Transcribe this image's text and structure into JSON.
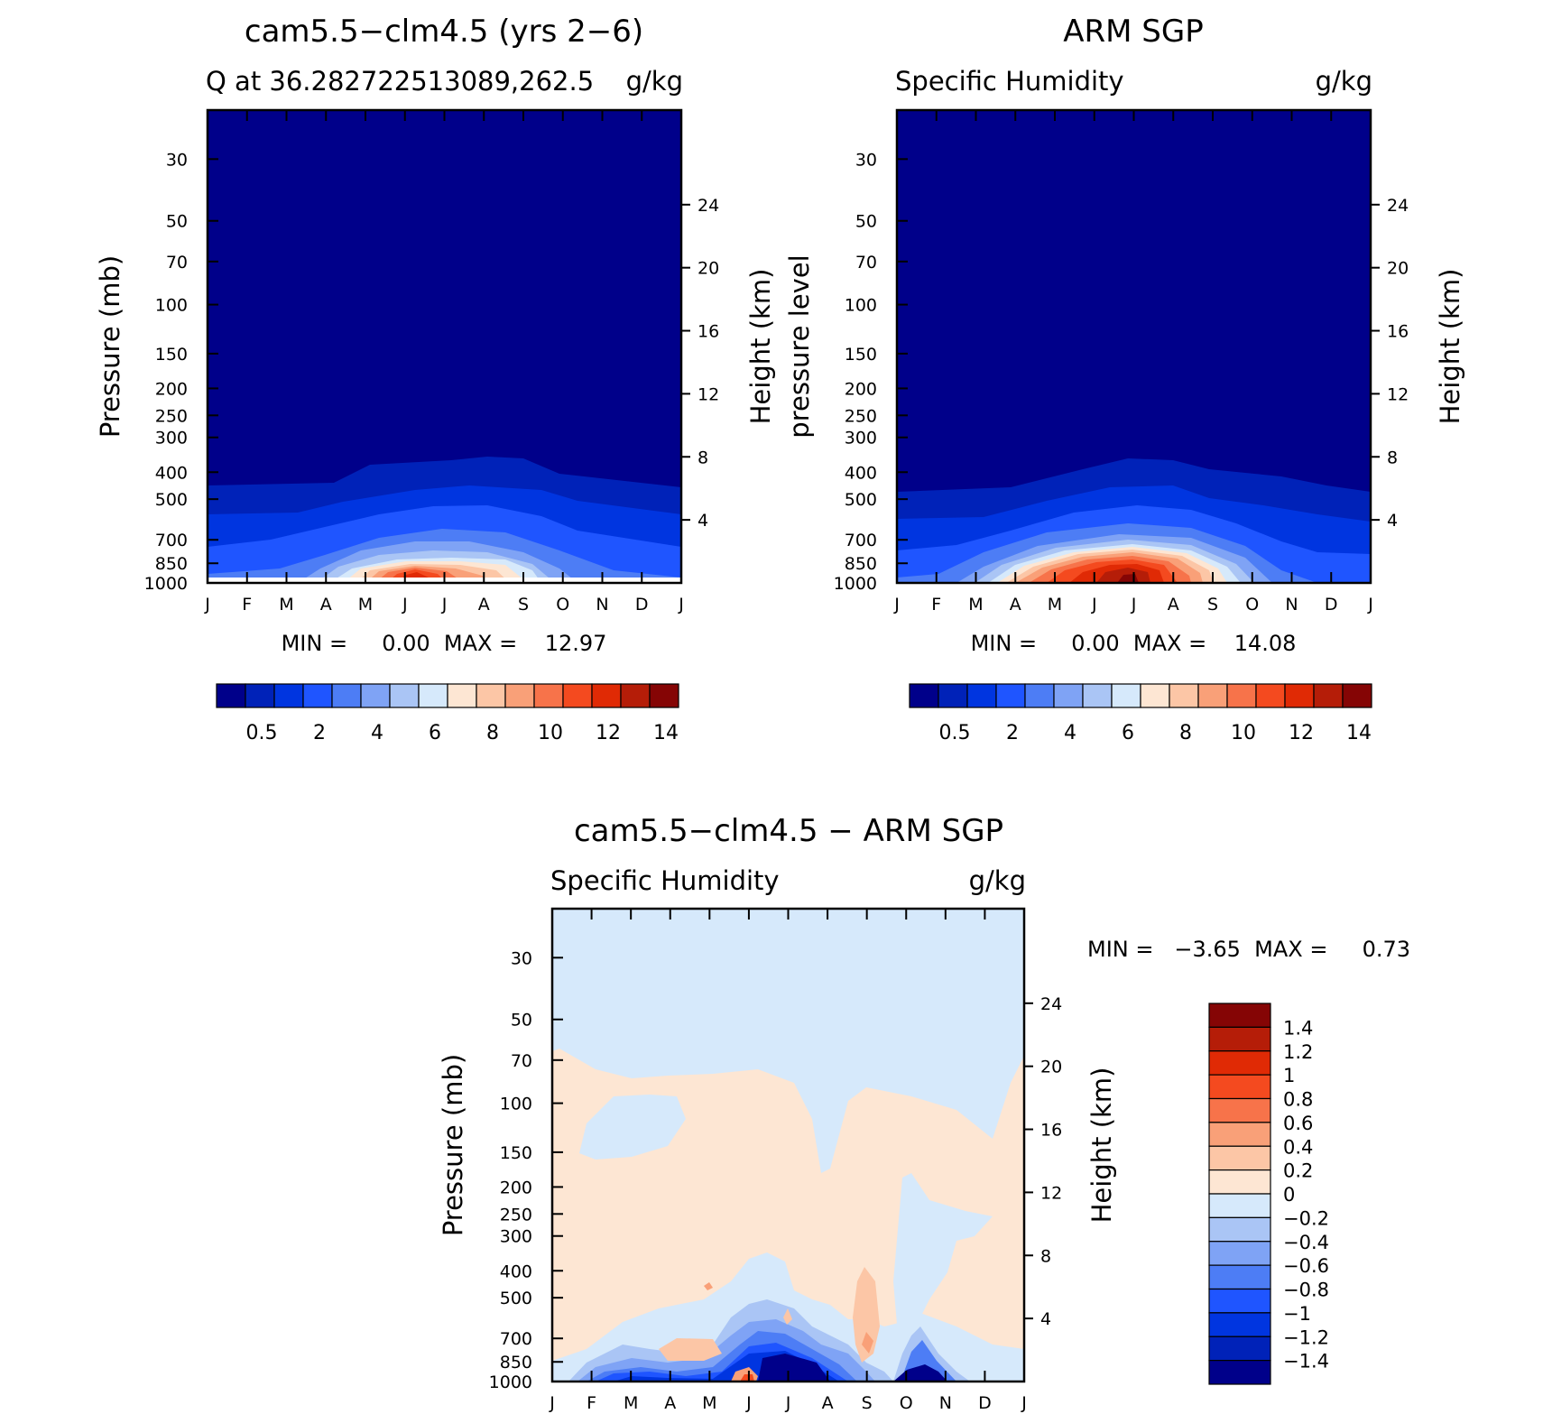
{
  "months": [
    "J",
    "F",
    "M",
    "A",
    "M",
    "J",
    "J",
    "A",
    "S",
    "O",
    "N",
    "D",
    "J"
  ],
  "pressure_ticks": [
    30,
    50,
    70,
    100,
    150,
    200,
    250,
    300,
    400,
    500,
    700,
    850,
    1000
  ],
  "height_ticks": [
    4,
    8,
    12,
    16,
    20,
    24
  ],
  "panels": [
    {
      "id": "model",
      "title": "cam5.5−clm4.5 (yrs 2−6)",
      "left_label": "Q at 36.282722513089,262.5",
      "right_label": "g/kg",
      "ylabel": "Pressure (mb)",
      "y2label": "Height (km)",
      "stats": "MIN =     0.00  MAX =    12.97"
    },
    {
      "id": "obs",
      "title": "ARM SGP",
      "left_label": "Specific Humidity",
      "right_label": "g/kg",
      "ylabel": "pressure level",
      "y2label": "Height (km)",
      "stats": "MIN =     0.00  MAX =    14.08"
    },
    {
      "id": "diff",
      "title": "cam5.5−clm4.5 − ARM SGP",
      "left_label": "Specific Humidity",
      "right_label": "g/kg",
      "ylabel": "Pressure (mb)",
      "y2label": "Height (km)",
      "stats": "MIN =   −3.65  MAX =     0.73"
    }
  ],
  "colorbar_q": {
    "labels": [
      "0.5",
      "2",
      "4",
      "6",
      "8",
      "10",
      "12",
      "14"
    ],
    "colors": [
      "#00008a",
      "#0022b8",
      "#0035e0",
      "#1f55ff",
      "#4d7df5",
      "#7fa3f5",
      "#aac5f5",
      "#d6e9fb",
      "#fde6d3",
      "#fcc6a6",
      "#f9a078",
      "#f7734a",
      "#f44a1f",
      "#e02a05",
      "#b51d08",
      "#850505"
    ]
  },
  "colorbar_diff": {
    "labels": [
      "1.4",
      "1.2",
      "1",
      "0.8",
      "0.6",
      "0.4",
      "0.2",
      "0",
      "−0.2",
      "−0.4",
      "−0.6",
      "−0.8",
      "−1",
      "−1.2",
      "−1.4"
    ],
    "colors_top_to_bottom": [
      "#850505",
      "#b51d08",
      "#e02a05",
      "#f44a1f",
      "#f7734a",
      "#f9a078",
      "#fcc6a6",
      "#fde6d3",
      "#d6e9fb",
      "#aac5f5",
      "#7fa3f5",
      "#4d7df5",
      "#1f55ff",
      "#0035e0",
      "#0022b8",
      "#00008a"
    ]
  },
  "chart_data": [
    {
      "type": "heatmap",
      "title": "cam5.5−clm4.5 (yrs 2−6)",
      "subtitle": "Q at 36.282722513089,262.5",
      "units": "g/kg",
      "x": [
        "J",
        "F",
        "M",
        "A",
        "M",
        "J",
        "J",
        "A",
        "S",
        "O",
        "N",
        "D",
        "J"
      ],
      "ylabel": "Pressure (mb)",
      "y2label": "Height (km)",
      "ylim": [
        1000,
        20
      ],
      "yscale": "log",
      "min": 0.0,
      "max": 12.97,
      "contour_levels": [
        0.5,
        1,
        2,
        3,
        4,
        5,
        6,
        7,
        8,
        9,
        10,
        11,
        12,
        13,
        14
      ],
      "surface_max_by_month": [
        2.5,
        2.8,
        3.6,
        5.0,
        9.5,
        12.97,
        11.5,
        10.0,
        7.5,
        4.5,
        3.2,
        2.6,
        2.5
      ]
    },
    {
      "type": "heatmap",
      "title": "ARM SGP",
      "subtitle": "Specific Humidity",
      "units": "g/kg",
      "x": [
        "J",
        "F",
        "M",
        "A",
        "M",
        "J",
        "J",
        "A",
        "S",
        "O",
        "N",
        "D",
        "J"
      ],
      "ylabel": "pressure level",
      "y2label": "Height (km)",
      "ylim": [
        1000,
        20
      ],
      "yscale": "log",
      "min": 0.0,
      "max": 14.08,
      "contour_levels": [
        0.5,
        1,
        2,
        3,
        4,
        5,
        6,
        7,
        8,
        9,
        10,
        11,
        12,
        13,
        14
      ],
      "surface_max_by_month": [
        2.6,
        3.0,
        4.0,
        6.0,
        9.0,
        12.0,
        14.08,
        13.0,
        10.5,
        7.0,
        4.5,
        3.0,
        2.6
      ]
    },
    {
      "type": "heatmap",
      "title": "cam5.5−clm4.5 − ARM SGP",
      "subtitle": "Specific Humidity",
      "units": "g/kg",
      "x": [
        "J",
        "F",
        "M",
        "A",
        "M",
        "J",
        "J",
        "A",
        "S",
        "O",
        "N",
        "D",
        "J"
      ],
      "ylabel": "Pressure (mb)",
      "y2label": "Height (km)",
      "ylim": [
        1000,
        20
      ],
      "yscale": "log",
      "min": -3.65,
      "max": 0.73,
      "contour_levels": [
        -1.4,
        -1.2,
        -1,
        -0.8,
        -0.6,
        -0.4,
        -0.2,
        0,
        0.2,
        0.4,
        0.6,
        0.8,
        1,
        1.2,
        1.4
      ]
    }
  ]
}
